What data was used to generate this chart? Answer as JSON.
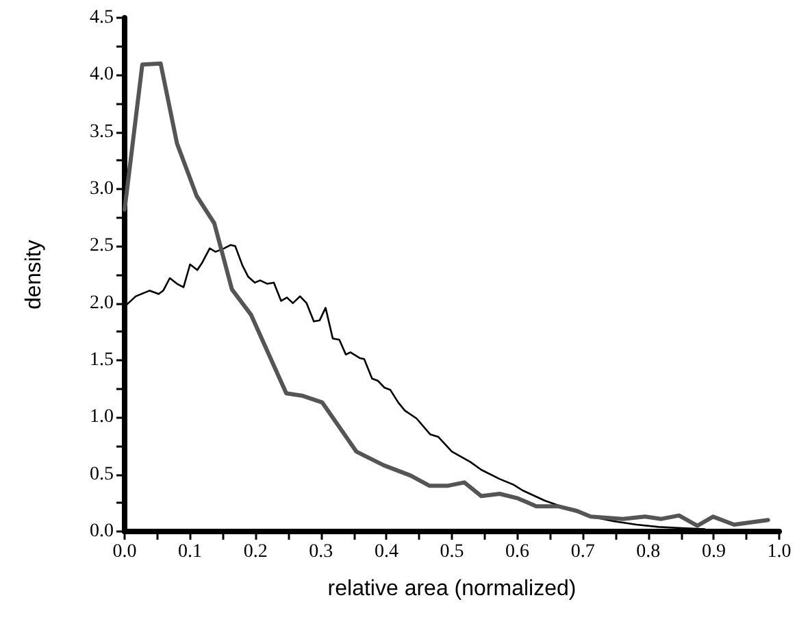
{
  "chart_data": {
    "type": "line",
    "xlabel": "relative area (normalized)",
    "ylabel": "density",
    "xlim": [
      0,
      1
    ],
    "ylim": [
      0,
      4.5
    ],
    "xticks": [
      {
        "value": 0,
        "label": "0.0"
      },
      {
        "value": 0.05,
        "label": null
      },
      {
        "value": 0.1,
        "label": "0.1"
      },
      {
        "value": 0.15,
        "label": null
      },
      {
        "value": 0.2,
        "label": "0.2"
      },
      {
        "value": 0.25,
        "label": null
      },
      {
        "value": 0.3,
        "label": "0.3"
      },
      {
        "value": 0.35,
        "label": null
      },
      {
        "value": 0.4,
        "label": "0.4"
      },
      {
        "value": 0.45,
        "label": null
      },
      {
        "value": 0.5,
        "label": "0.5"
      },
      {
        "value": 0.55,
        "label": null
      },
      {
        "value": 0.6,
        "label": "0.6"
      },
      {
        "value": 0.65,
        "label": null
      },
      {
        "value": 0.7,
        "label": "0.7"
      },
      {
        "value": 0.75,
        "label": null
      },
      {
        "value": 0.8,
        "label": "0.8"
      },
      {
        "value": 0.85,
        "label": null
      },
      {
        "value": 0.9,
        "label": "0.9"
      },
      {
        "value": 0.95,
        "label": null
      },
      {
        "value": 1,
        "label": "1.0"
      }
    ],
    "yticks": [
      {
        "value": 0,
        "label": "0.0"
      },
      {
        "value": 0.25,
        "label": null
      },
      {
        "value": 0.5,
        "label": "0.5"
      },
      {
        "value": 0.75,
        "label": null
      },
      {
        "value": 1,
        "label": "1.0"
      },
      {
        "value": 1.25,
        "label": null
      },
      {
        "value": 1.5,
        "label": "1.5"
      },
      {
        "value": 1.75,
        "label": null
      },
      {
        "value": 2,
        "label": "2.0"
      },
      {
        "value": 2.25,
        "label": null
      },
      {
        "value": 2.5,
        "label": "2.5"
      },
      {
        "value": 2.75,
        "label": null
      },
      {
        "value": 3,
        "label": "3.0"
      },
      {
        "value": 3.25,
        "label": null
      },
      {
        "value": 3.5,
        "label": "3.5"
      },
      {
        "value": 3.75,
        "label": null
      },
      {
        "value": 4,
        "label": "4.0"
      },
      {
        "value": 4.25,
        "label": null
      },
      {
        "value": 4.5,
        "label": "4.5"
      }
    ],
    "grid": false,
    "marker": "none",
    "line_style": "solid",
    "series": [
      {
        "color": "#000000",
        "x": [
          0,
          0.017,
          0.038,
          0.052,
          0.059,
          0.069,
          0.08,
          0.09,
          0.1,
          0.111,
          0.118,
          0.13,
          0.139,
          0.152,
          0.162,
          0.169,
          0.18,
          0.189,
          0.199,
          0.207,
          0.218,
          0.228,
          0.239,
          0.248,
          0.257,
          0.268,
          0.278,
          0.289,
          0.298,
          0.307,
          0.318,
          0.328,
          0.338,
          0.345,
          0.359,
          0.366,
          0.378,
          0.387,
          0.397,
          0.406,
          0.418,
          0.428,
          0.446,
          0.467,
          0.479,
          0.5,
          0.528,
          0.545,
          0.573,
          0.594,
          0.608,
          0.642,
          0.677,
          0.712,
          0.747,
          0.782,
          0.816,
          0.851,
          0.886
        ],
        "values": [
          1.97,
          2.06,
          2.11,
          2.08,
          2.11,
          2.22,
          2.17,
          2.14,
          2.34,
          2.29,
          2.35,
          2.48,
          2.45,
          2.48,
          2.51,
          2.5,
          2.33,
          2.23,
          2.18,
          2.2,
          2.17,
          2.18,
          2.02,
          2.05,
          2.0,
          2.06,
          2.0,
          1.84,
          1.85,
          1.96,
          1.69,
          1.68,
          1.55,
          1.57,
          1.52,
          1.51,
          1.34,
          1.32,
          1.26,
          1.24,
          1.13,
          1.06,
          0.99,
          0.85,
          0.83,
          0.7,
          0.61,
          0.54,
          0.46,
          0.41,
          0.36,
          0.27,
          0.2,
          0.13,
          0.09,
          0.06,
          0.04,
          0.03,
          0.02
        ]
      },
      {
        "color": "#555555",
        "x": [
          0,
          0.027,
          0.055,
          0.08,
          0.11,
          0.137,
          0.164,
          0.193,
          0.247,
          0.271,
          0.302,
          0.354,
          0.396,
          0.437,
          0.466,
          0.493,
          0.519,
          0.545,
          0.573,
          0.601,
          0.629,
          0.663,
          0.691,
          0.712,
          0.761,
          0.795,
          0.82,
          0.847,
          0.875,
          0.899,
          0.931,
          0.983
        ],
        "values": [
          2.82,
          4.09,
          4.1,
          3.4,
          2.94,
          2.7,
          2.12,
          1.9,
          1.21,
          1.19,
          1.13,
          0.7,
          0.58,
          0.49,
          0.4,
          0.4,
          0.43,
          0.31,
          0.33,
          0.29,
          0.22,
          0.22,
          0.18,
          0.13,
          0.11,
          0.13,
          0.11,
          0.14,
          0.05,
          0.13,
          0.06,
          0.1
        ]
      }
    ]
  }
}
